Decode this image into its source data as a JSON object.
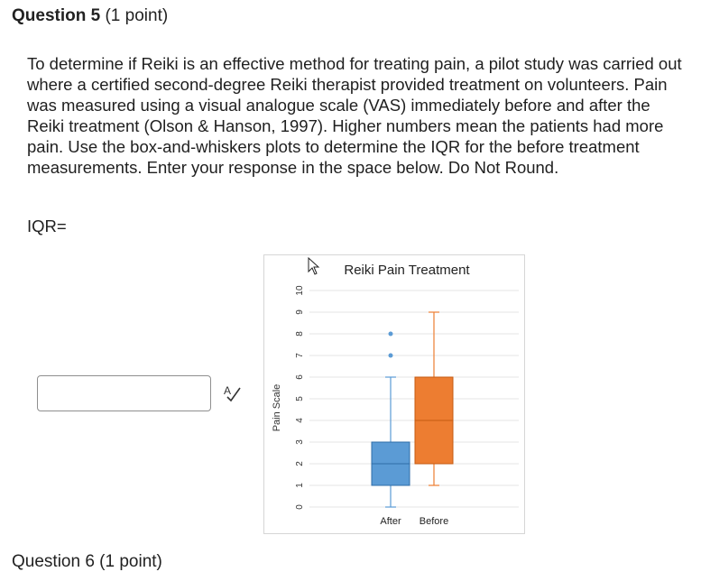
{
  "question": {
    "title_bold": "Question 5",
    "title_points": "(1 point)",
    "prompt": "To determine if Reiki is an effective method for treating pain, a pilot study was carried out where a certified second-degree Reiki therapist provided treatment on volunteers. Pain was measured using a visual analogue scale (VAS) immediately before and after the Reiki treatment (Olson & Hanson, 1997). Higher numbers mean the patients had more pain. Use the box-and-whiskers plots to determine the IQR for the before treatment measurements. Enter your response in the space below. Do Not Round.",
    "answer_label": "IQR=",
    "answer_value": ""
  },
  "icons": {
    "spellcheck": "spellcheck-icon",
    "cursor": "mouse-pointer-icon"
  },
  "next_question": {
    "title_partial": "Question 6 (1 point)"
  },
  "chart_data": {
    "type": "boxplot",
    "title": "Reiki Pain Treatment",
    "ylabel": "Pain Scale",
    "xlabel": "",
    "ylim": [
      0,
      10
    ],
    "yticks": [
      0,
      1,
      2,
      3,
      4,
      5,
      6,
      7,
      8,
      9,
      10
    ],
    "grid": true,
    "categories": [
      "After",
      "Before"
    ],
    "series": [
      {
        "category": "After",
        "min": 0,
        "q1": 1,
        "median": 2,
        "q3": 3,
        "max": 6,
        "outliers": [
          7,
          8
        ],
        "color": "#5b9bd5"
      },
      {
        "category": "Before",
        "min": 1,
        "q1": 2,
        "median": 4,
        "q3": 6,
        "max": 9,
        "outliers": [],
        "color": "#ed7d31"
      }
    ]
  }
}
